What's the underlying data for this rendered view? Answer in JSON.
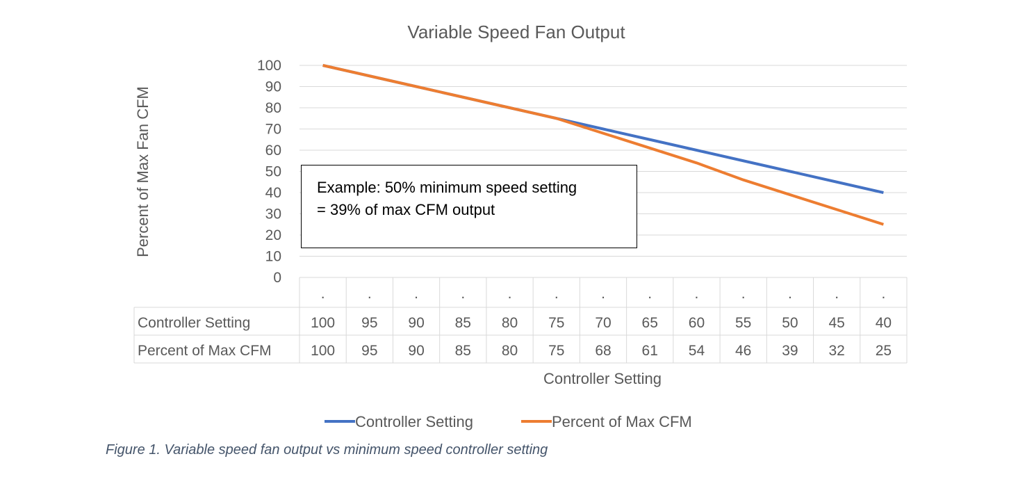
{
  "chart_data": {
    "type": "line",
    "title": "Variable Speed Fan Output",
    "xlabel": "Controller Setting",
    "ylabel": "Percent of Max Fan CFM",
    "ylim": [
      0,
      100
    ],
    "yticks": [
      0,
      10,
      20,
      30,
      40,
      50,
      60,
      70,
      80,
      90,
      100
    ],
    "grid": true,
    "legend_placement": "bottom",
    "categories": [
      ".",
      ".",
      ".",
      ".",
      ".",
      ".",
      ".",
      ".",
      ".",
      ".",
      ".",
      ".",
      "."
    ],
    "series": [
      {
        "name": "Controller Setting",
        "color": "#4472c4",
        "values": [
          100,
          95,
          90,
          85,
          80,
          75,
          70,
          65,
          60,
          55,
          50,
          45,
          40
        ]
      },
      {
        "name": "Percent of Max CFM",
        "color": "#ed7d31",
        "values": [
          100,
          95,
          90,
          85,
          80,
          75,
          68,
          61,
          54,
          46,
          39,
          32,
          25
        ]
      }
    ],
    "data_table": true,
    "annotation": {
      "line1": "Example: 50% minimum speed setting",
      "line2": "= 39% of max CFM output"
    }
  },
  "caption": "Figure 1. Variable speed fan output vs minimum speed controller setting"
}
